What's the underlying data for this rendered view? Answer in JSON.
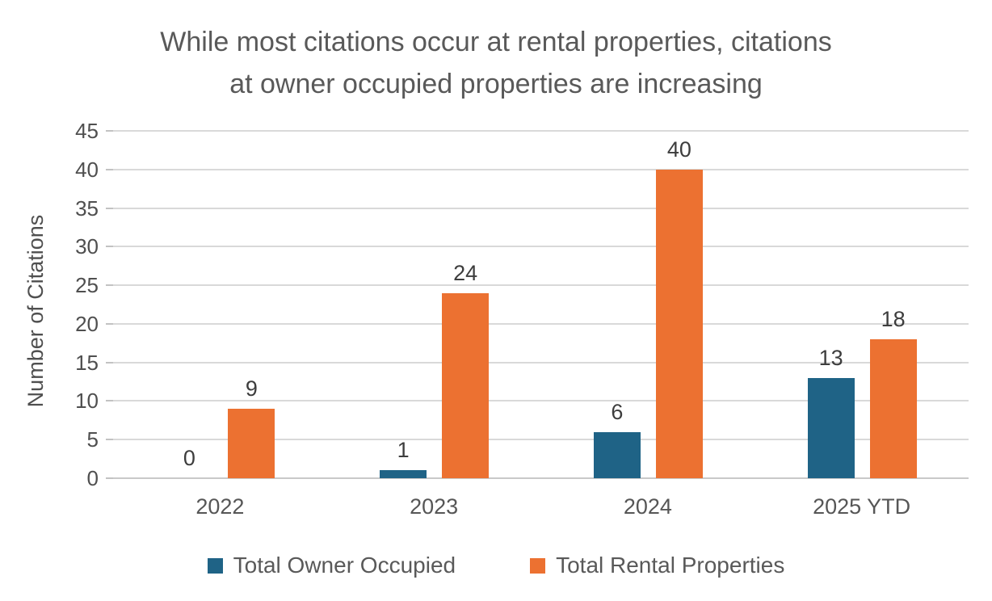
{
  "title": {
    "line1": "While most citations occur at rental properties, citations",
    "line2": "at owner occupied properties are increasing"
  },
  "chart_data": {
    "type": "bar",
    "title": "While most citations occur at rental properties, citations at owner occupied properties are increasing",
    "xlabel": "",
    "ylabel": "Number of Citations",
    "categories": [
      "2022",
      "2023",
      "2024",
      "2025 YTD"
    ],
    "series": [
      {
        "name": "Total Owner Occupied",
        "color": "#1f6386",
        "values": [
          0,
          1,
          6,
          13
        ]
      },
      {
        "name": "Total Rental Properties",
        "color": "#ec7131",
        "values": [
          9,
          24,
          40,
          18
        ]
      }
    ],
    "ylim": [
      0,
      45
    ],
    "ytick_step": 5,
    "grid": true,
    "legend_position": "bottom",
    "data_labels": [
      [
        "0",
        "1",
        "6",
        "13"
      ],
      [
        "9",
        "24",
        "40",
        "18"
      ]
    ]
  },
  "colors": {
    "owner_occupied": "#1f6386",
    "rental_properties": "#ec7131",
    "gridline": "#d9d9d9",
    "title_text": "#595959",
    "axis_text": "#4f4f4f",
    "background": "#ffffff"
  }
}
